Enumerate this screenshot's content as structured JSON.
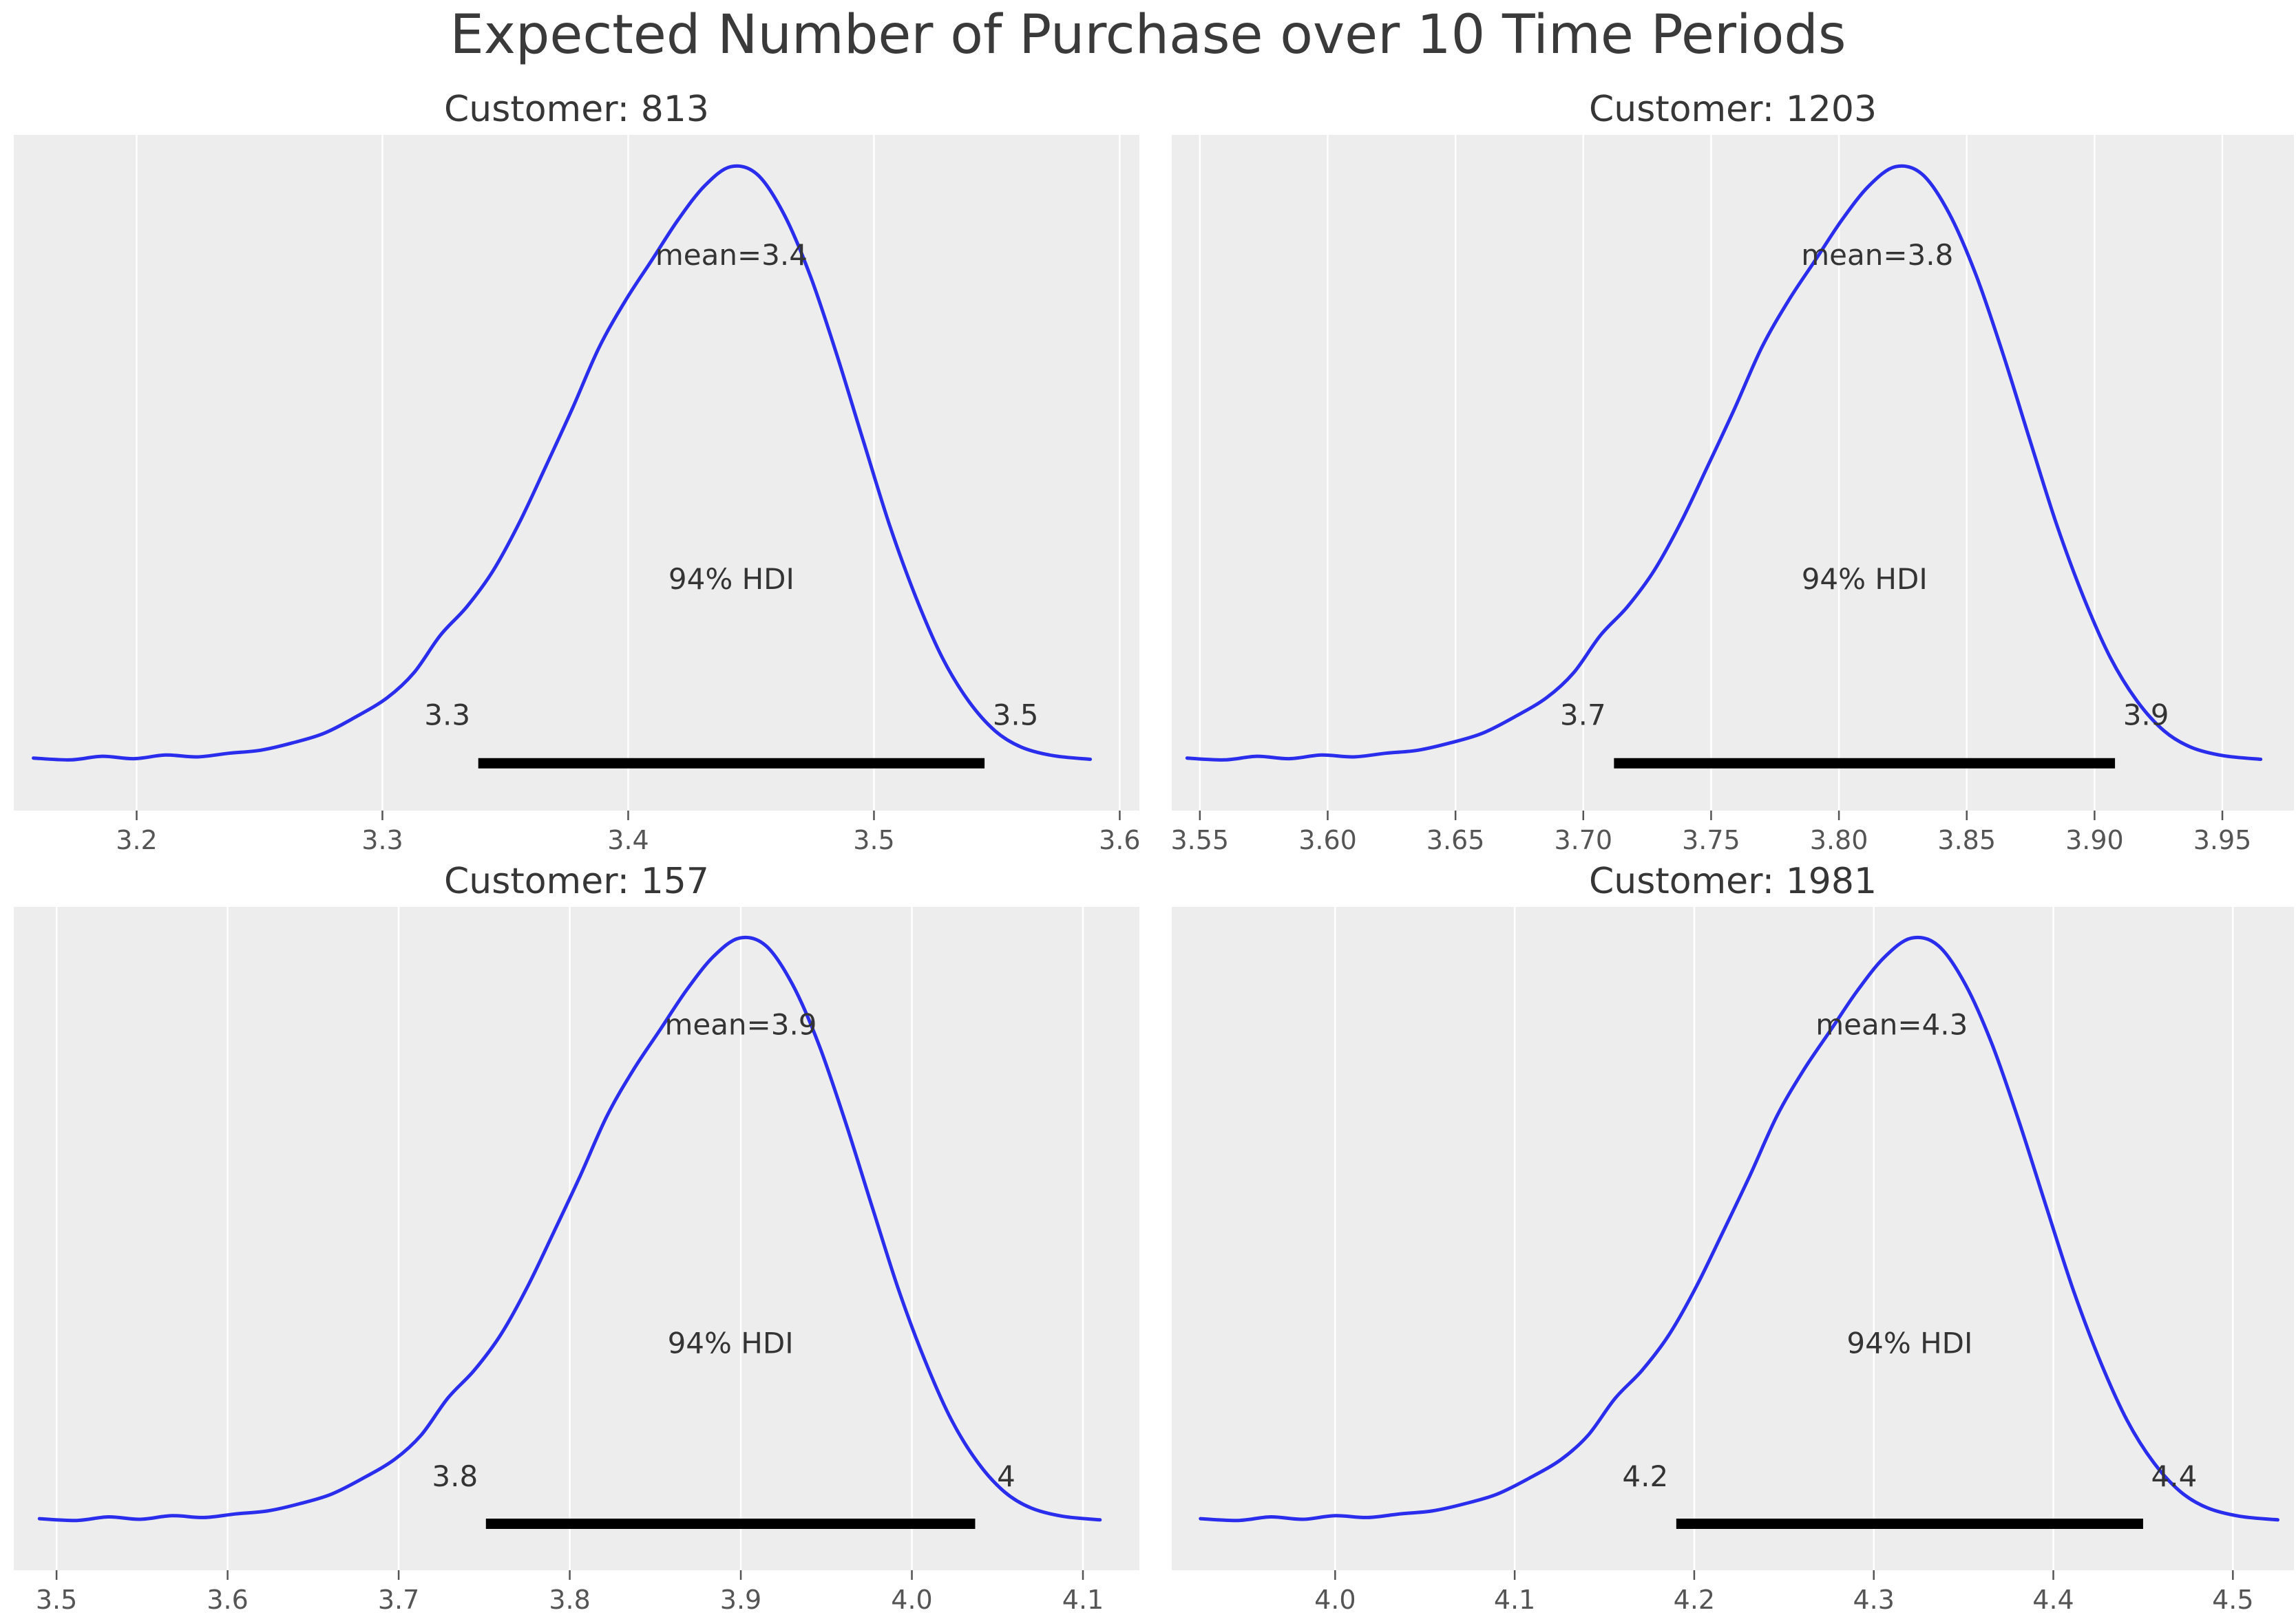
{
  "chart_data": {
    "kind": "posterior-kde-grid",
    "type": "line",
    "figure_title": "Expected Number of Purchase over 10 Time Periods",
    "hdi_probability": "94%",
    "legend": "none",
    "grid": "vertical-white-on-gray",
    "density_shape": [
      [
        0.0,
        0.022
      ],
      [
        0.035,
        0.019
      ],
      [
        0.065,
        0.025
      ],
      [
        0.095,
        0.021
      ],
      [
        0.125,
        0.027
      ],
      [
        0.155,
        0.024
      ],
      [
        0.185,
        0.03
      ],
      [
        0.215,
        0.035
      ],
      [
        0.245,
        0.047
      ],
      [
        0.275,
        0.063
      ],
      [
        0.305,
        0.09
      ],
      [
        0.335,
        0.122
      ],
      [
        0.36,
        0.163
      ],
      [
        0.385,
        0.225
      ],
      [
        0.41,
        0.272
      ],
      [
        0.435,
        0.332
      ],
      [
        0.46,
        0.412
      ],
      [
        0.485,
        0.505
      ],
      [
        0.51,
        0.6
      ],
      [
        0.535,
        0.7
      ],
      [
        0.56,
        0.778
      ],
      [
        0.585,
        0.845
      ],
      [
        0.61,
        0.912
      ],
      [
        0.635,
        0.968
      ],
      [
        0.66,
        1.0
      ],
      [
        0.685,
        0.987
      ],
      [
        0.71,
        0.922
      ],
      [
        0.735,
        0.82
      ],
      [
        0.76,
        0.69
      ],
      [
        0.785,
        0.548
      ],
      [
        0.81,
        0.408
      ],
      [
        0.835,
        0.288
      ],
      [
        0.86,
        0.188
      ],
      [
        0.885,
        0.116
      ],
      [
        0.91,
        0.067
      ],
      [
        0.935,
        0.04
      ],
      [
        0.965,
        0.026
      ],
      [
        1.0,
        0.02
      ]
    ],
    "plots": [
      {
        "title": "Customer: 813",
        "mean": 3.4,
        "mean_label": "mean=3.4",
        "mean_x": 3.442,
        "hdi_label": "94% HDI",
        "hdi_lo": 3.339,
        "hdi_hi": 3.545,
        "hdi_lo_label": "3.3",
        "hdi_hi_label": "3.5",
        "xlim": [
          3.15,
          3.608
        ],
        "ticks": [
          3.2,
          3.3,
          3.4,
          3.5,
          3.6
        ],
        "tick_labels": [
          "3.2",
          "3.3",
          "3.4",
          "3.5",
          "3.6"
        ],
        "curve_span": [
          3.158,
          3.588
        ]
      },
      {
        "title": "Customer: 1203",
        "mean": 3.8,
        "mean_label": "mean=3.8",
        "mean_x": 3.815,
        "hdi_label": "94% HDI",
        "hdi_lo": 3.712,
        "hdi_hi": 3.908,
        "hdi_lo_label": "3.7",
        "hdi_hi_label": "3.9",
        "xlim": [
          3.539,
          3.978
        ],
        "ticks": [
          3.55,
          3.6,
          3.65,
          3.7,
          3.75,
          3.8,
          3.85,
          3.9,
          3.95
        ],
        "tick_labels": [
          "3.55",
          "3.60",
          "3.65",
          "3.70",
          "3.75",
          "3.80",
          "3.85",
          "3.90",
          "3.95"
        ],
        "curve_span": [
          3.545,
          3.965
        ]
      },
      {
        "title": "Customer: 157",
        "mean": 3.9,
        "mean_label": "mean=3.9",
        "mean_x": 3.9,
        "hdi_label": "94% HDI",
        "hdi_lo": 3.751,
        "hdi_hi": 4.037,
        "hdi_lo_label": "3.8",
        "hdi_hi_label": "4",
        "xlim": [
          3.475,
          4.133
        ],
        "ticks": [
          3.5,
          3.6,
          3.7,
          3.8,
          3.9,
          4.0,
          4.1
        ],
        "tick_labels": [
          "3.5",
          "3.6",
          "3.7",
          "3.8",
          "3.9",
          "4.0",
          "4.1"
        ],
        "curve_span": [
          3.49,
          4.11
        ]
      },
      {
        "title": "Customer: 1981",
        "mean": 4.3,
        "mean_label": "mean=4.3",
        "mean_x": 4.31,
        "hdi_label": "94% HDI",
        "hdi_lo": 4.19,
        "hdi_hi": 4.45,
        "hdi_lo_label": "4.2",
        "hdi_hi_label": "4.4",
        "xlim": [
          3.909,
          4.534
        ],
        "ticks": [
          4.0,
          4.1,
          4.2,
          4.3,
          4.4,
          4.5
        ],
        "tick_labels": [
          "4.0",
          "4.1",
          "4.2",
          "4.3",
          "4.4",
          "4.5"
        ],
        "curve_span": [
          3.925,
          4.525
        ]
      }
    ],
    "colors": {
      "curve": "#2a2eec",
      "panel": "#ededed",
      "grid": "#ffffff",
      "hdi_bar": "#000000",
      "tick_text": "#555555",
      "annotation_text": "#343434",
      "title_text": "#363636"
    }
  }
}
